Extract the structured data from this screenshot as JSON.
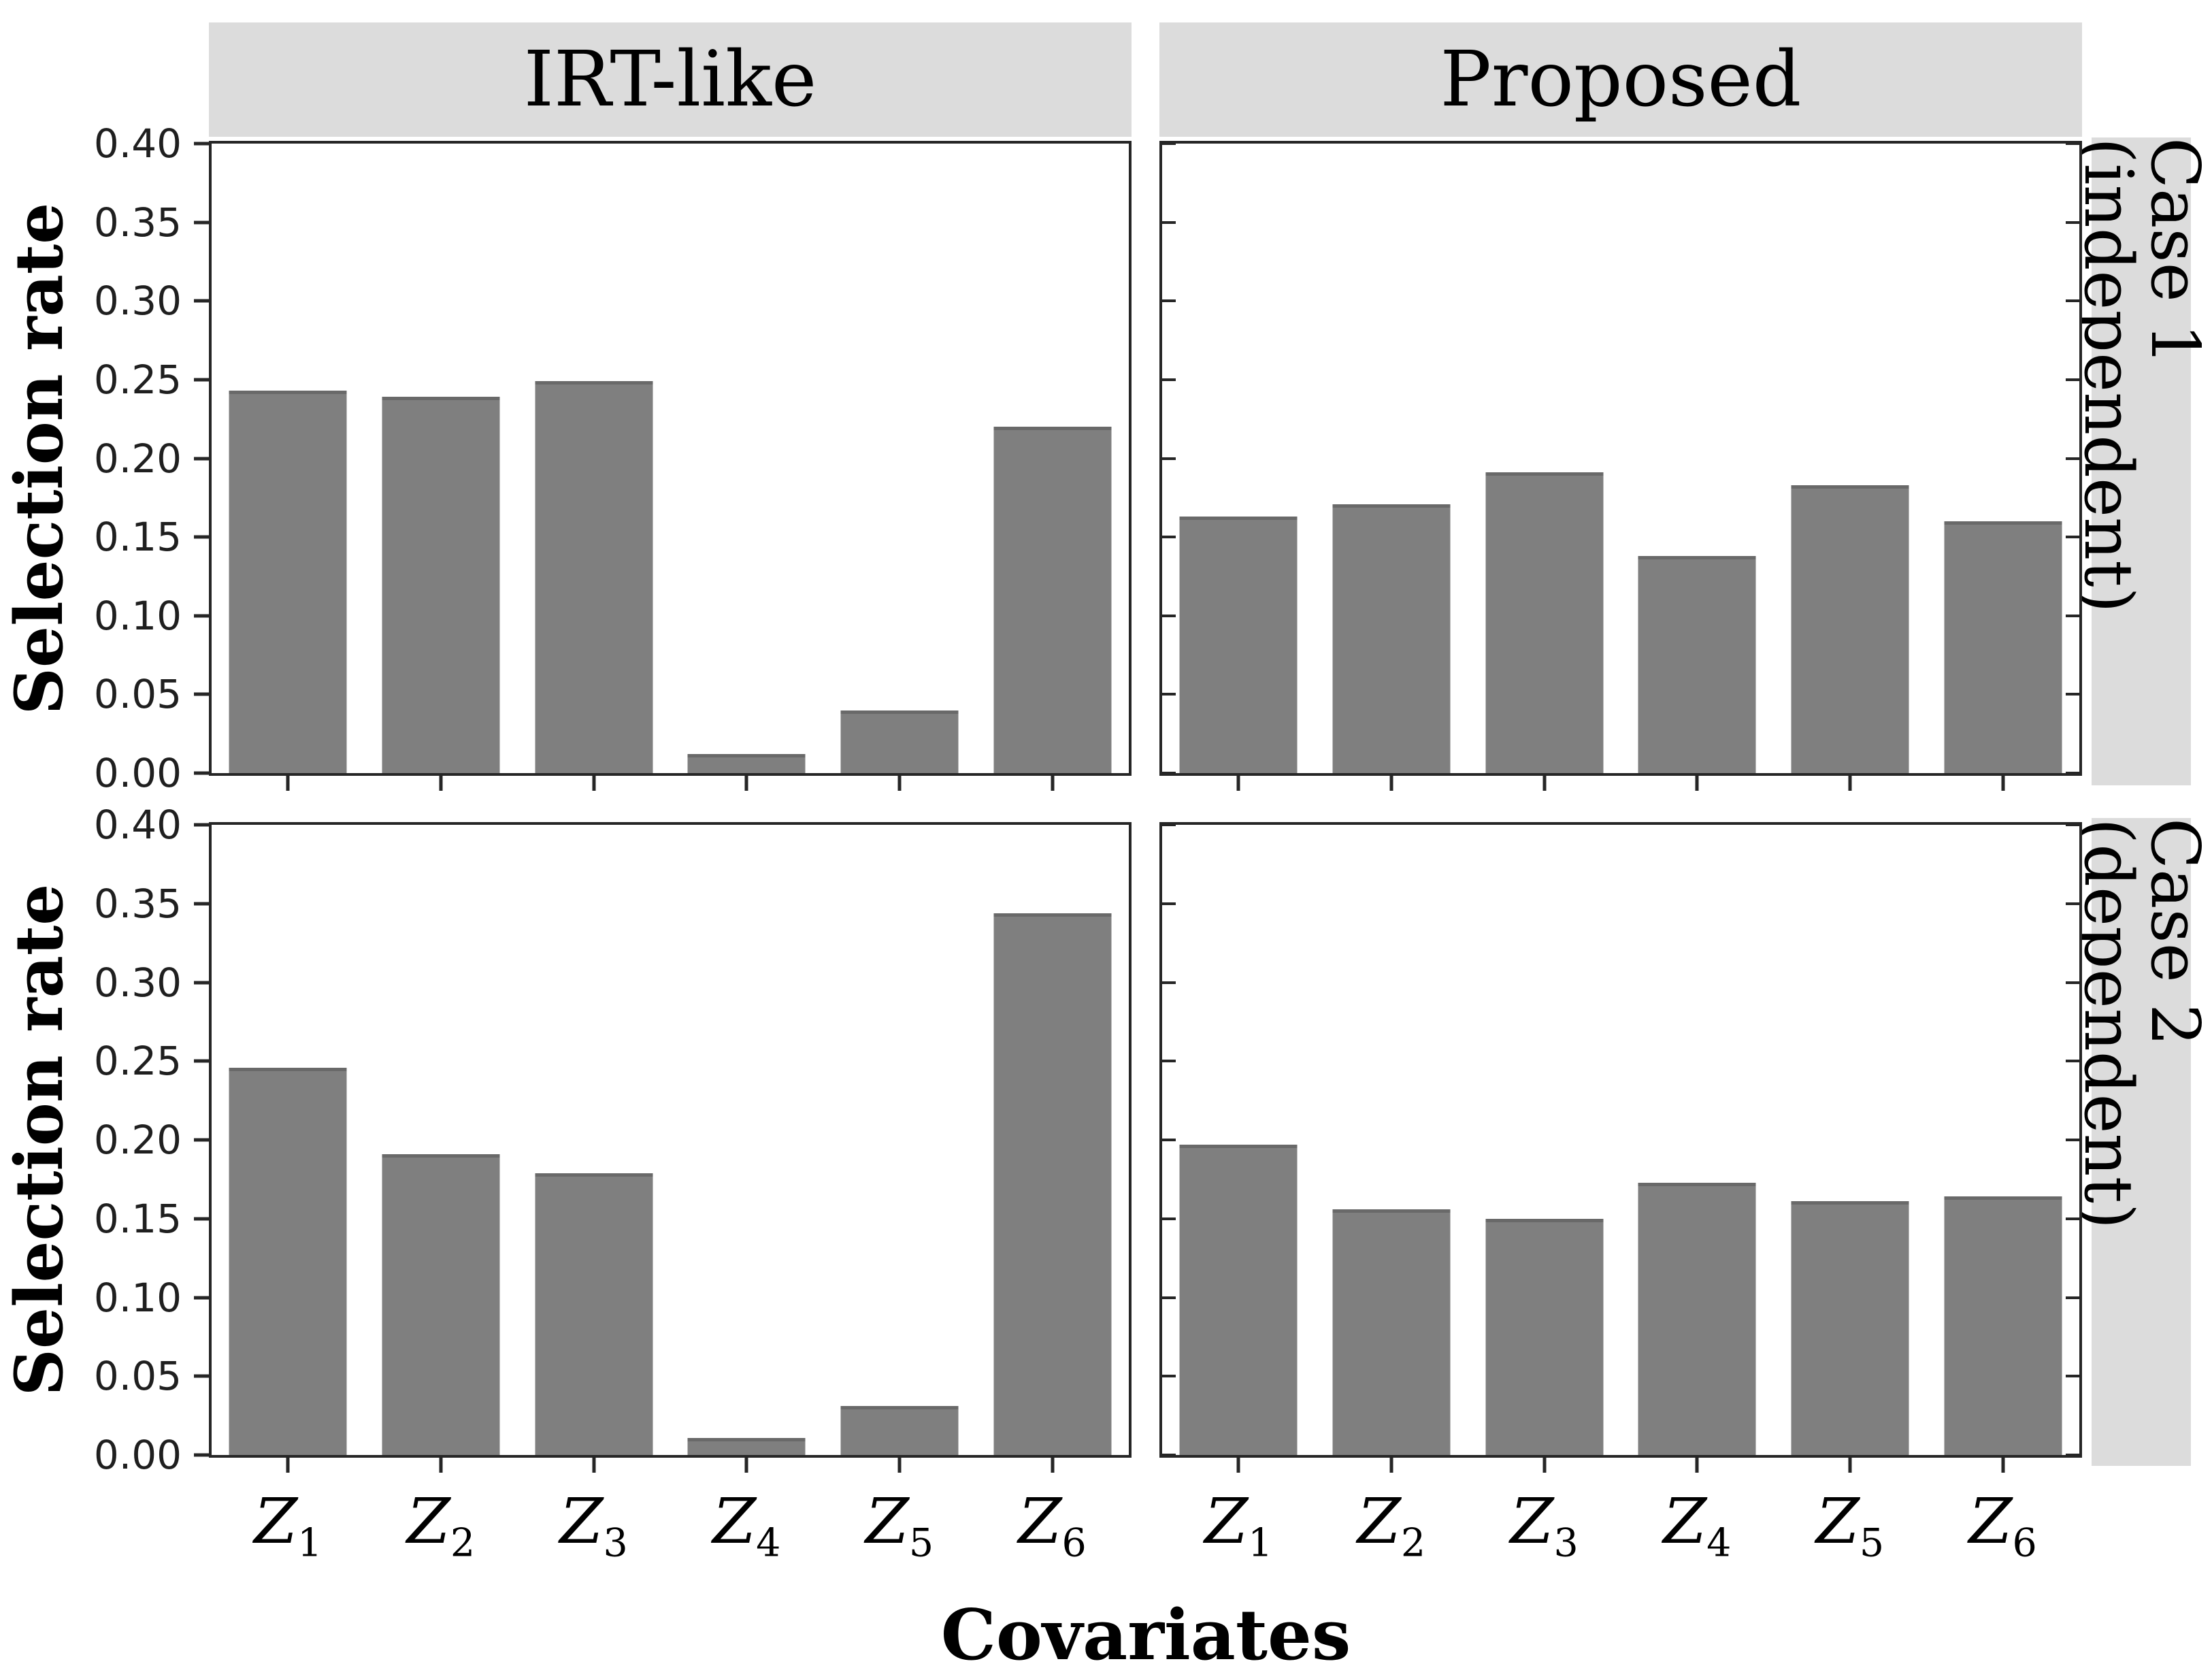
{
  "figure": {
    "column_headers": [
      "IRT-like",
      "Proposed"
    ],
    "row_headers": [
      "Case 1 (independent)",
      "Case 2 (dependent)"
    ],
    "y_axis_title": "Selection rate",
    "x_axis_title": "Covariates",
    "y_tick_labels": [
      "0.40",
      "0.35",
      "0.30",
      "0.25",
      "0.20",
      "0.15",
      "0.10",
      "0.05",
      "0.00"
    ],
    "colors": {
      "bar_fill": "#7f7f7f",
      "bar_edge": "#696969",
      "strip_bg": "#dcdcdc",
      "spine": "#262626",
      "tick_label": "#1f1f1f"
    }
  },
  "chart_data": [
    {
      "type": "bar",
      "title": "IRT-like / Case 1 (independent)",
      "categories": [
        "Z1",
        "Z2",
        "Z3",
        "Z4",
        "Z5",
        "Z6"
      ],
      "values": [
        0.243,
        0.239,
        0.249,
        0.012,
        0.04,
        0.22
      ],
      "xlabel": "Covariates",
      "ylabel": "Selection rate",
      "ylim": [
        0,
        0.4
      ],
      "grid": false,
      "show_y_tick_labels": true,
      "show_x_tick_labels": false
    },
    {
      "type": "bar",
      "title": "Proposed / Case 1 (independent)",
      "categories": [
        "Z1",
        "Z2",
        "Z3",
        "Z4",
        "Z5",
        "Z6"
      ],
      "values": [
        0.163,
        0.171,
        0.191,
        0.138,
        0.183,
        0.16
      ],
      "xlabel": "Covariates",
      "ylabel": "Selection rate",
      "ylim": [
        0,
        0.4
      ],
      "grid": false,
      "show_y_tick_labels": false,
      "show_x_tick_labels": false
    },
    {
      "type": "bar",
      "title": "IRT-like / Case 2 (dependent)",
      "categories": [
        "Z1",
        "Z2",
        "Z3",
        "Z4",
        "Z5",
        "Z6"
      ],
      "values": [
        0.246,
        0.191,
        0.179,
        0.011,
        0.031,
        0.344
      ],
      "xlabel": "Covariates",
      "ylabel": "Selection rate",
      "ylim": [
        0,
        0.4
      ],
      "grid": false,
      "show_y_tick_labels": true,
      "show_x_tick_labels": true
    },
    {
      "type": "bar",
      "title": "Proposed / Case 2 (dependent)",
      "categories": [
        "Z1",
        "Z2",
        "Z3",
        "Z4",
        "Z5",
        "Z6"
      ],
      "values": [
        0.197,
        0.156,
        0.15,
        0.173,
        0.161,
        0.164
      ],
      "xlabel": "Covariates",
      "ylabel": "Selection rate",
      "ylim": [
        0,
        0.4
      ],
      "grid": false,
      "show_y_tick_labels": false,
      "show_x_tick_labels": true
    }
  ]
}
